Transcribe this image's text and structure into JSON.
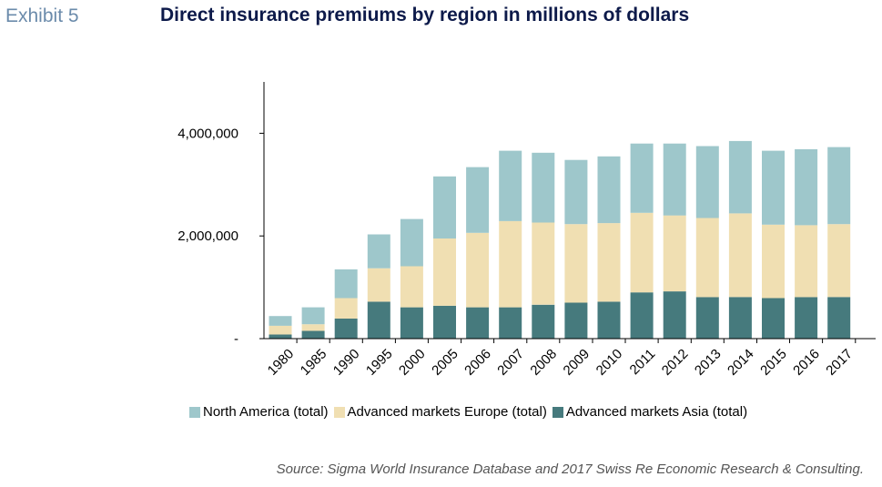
{
  "header": {
    "exhibit": "Exhibit 5",
    "title": "Direct insurance premiums by region in millions of dollars"
  },
  "source": "Source: Sigma World Insurance Database and 2017 Swiss Re Economic Research & Consulting.",
  "chart_data": {
    "type": "bar",
    "stacked": true,
    "title": "Direct insurance premiums by region in millions of dollars",
    "xlabel": "",
    "ylabel": "",
    "ylim": [
      0,
      5000000
    ],
    "yticks": [
      0,
      2000000,
      4000000
    ],
    "ytick_labels": [
      "-",
      "2,000,000",
      "4,000,000"
    ],
    "grid": false,
    "legend_position": "bottom",
    "categories": [
      "1980",
      "1985",
      "1990",
      "1995",
      "2000",
      "2005",
      "2006",
      "2007",
      "2008",
      "2009",
      "2010",
      "2011",
      "2012",
      "2013",
      "2014",
      "2015",
      "2016",
      "2017"
    ],
    "series": [
      {
        "name": "Advanced markets Asia (total)",
        "color": "#467a7d",
        "values": [
          80000,
          150000,
          390000,
          720000,
          610000,
          640000,
          610000,
          610000,
          660000,
          700000,
          720000,
          900000,
          920000,
          810000,
          810000,
          790000,
          810000,
          810000
        ]
      },
      {
        "name": "Advanced markets Europe (total)",
        "color": "#f0dfb2",
        "values": [
          170000,
          130000,
          400000,
          650000,
          800000,
          1310000,
          1450000,
          1680000,
          1600000,
          1530000,
          1530000,
          1550000,
          1480000,
          1540000,
          1630000,
          1430000,
          1400000,
          1420000
        ]
      },
      {
        "name": "North America (total)",
        "color": "#9ec7cb",
        "values": [
          190000,
          330000,
          560000,
          660000,
          920000,
          1210000,
          1280000,
          1370000,
          1360000,
          1250000,
          1300000,
          1350000,
          1400000,
          1400000,
          1410000,
          1440000,
          1480000,
          1500000
        ]
      }
    ],
    "legend_order": [
      "North America (total)",
      "Advanced markets Europe (total)",
      "Advanced markets Asia (total)"
    ]
  }
}
